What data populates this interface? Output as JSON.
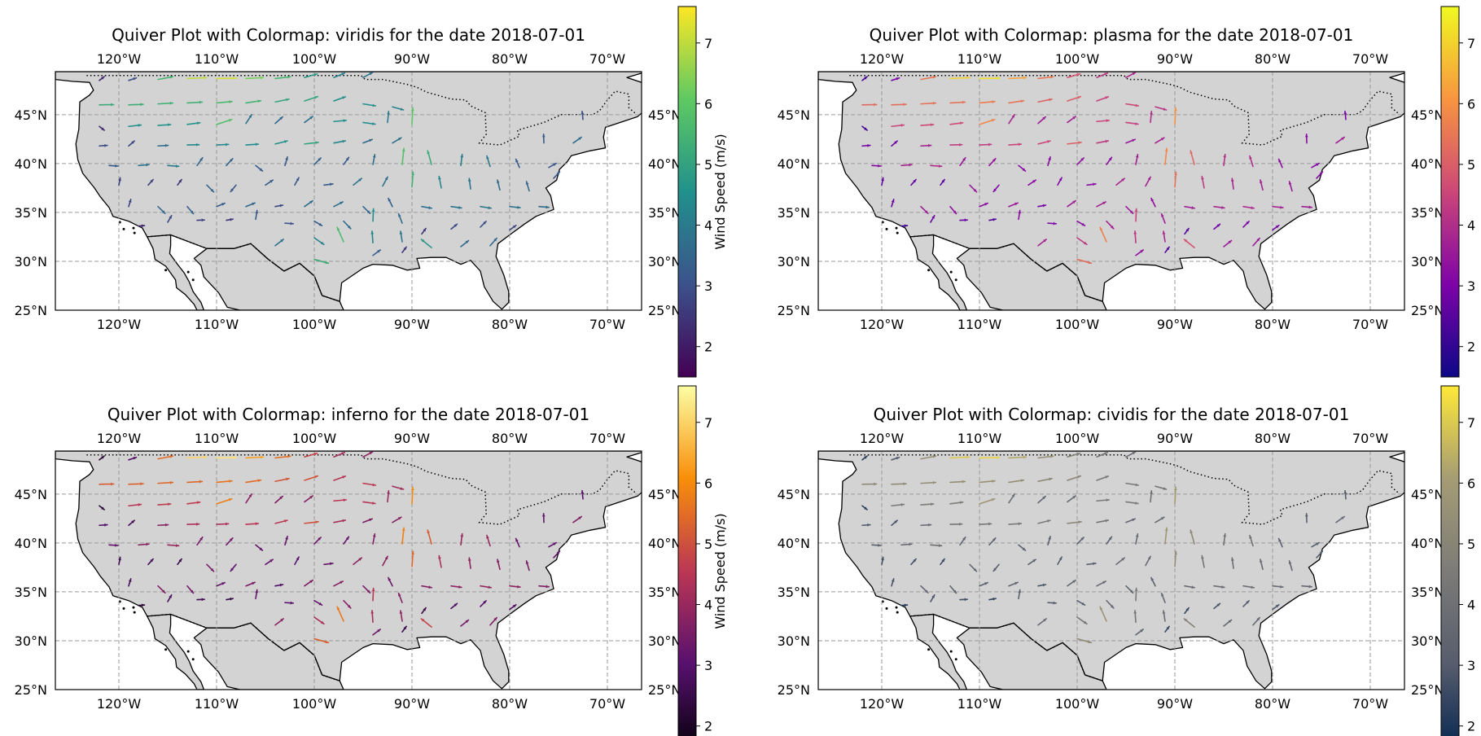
{
  "chart_data": [
    {
      "type": "quiver",
      "title": "Quiver Plot with Colormap: viridis for the date 2018-07-01",
      "colormap": "viridis",
      "colorbar": {
        "label": "Wind Speed (m/s)",
        "range": [
          1.5,
          7.6
        ],
        "ticks": [
          {
            "v": 2,
            "t": "2"
          },
          {
            "v": 3,
            "t": "3"
          },
          {
            "v": 4,
            "t": "4"
          },
          {
            "v": 5,
            "t": "5"
          },
          {
            "v": 6,
            "t": "6"
          },
          {
            "v": 7,
            "t": "7"
          }
        ]
      },
      "xlim": [
        -126.5,
        -66.5
      ],
      "ylim": [
        25,
        49.4
      ],
      "xticks": [
        {
          "v": -120,
          "t": "120°W"
        },
        {
          "v": -110,
          "t": "110°W"
        },
        {
          "v": -100,
          "t": "100°W"
        },
        {
          "v": -90,
          "t": "90°W"
        },
        {
          "v": -80,
          "t": "80°W"
        },
        {
          "v": -70,
          "t": "70°W"
        }
      ],
      "yticks": [
        {
          "v": 25,
          "t": "25°N"
        },
        {
          "v": 30,
          "t": "30°N"
        },
        {
          "v": 35,
          "t": "35°N"
        },
        {
          "v": 40,
          "t": "40°N"
        },
        {
          "v": 45,
          "t": "45°N"
        }
      ],
      "grid": true
    },
    {
      "type": "quiver",
      "title": "Quiver Plot with Colormap: plasma for the date 2018-07-01",
      "colormap": "plasma",
      "colorbar": {
        "label": "",
        "range": [
          1.5,
          7.6
        ],
        "ticks": [
          {
            "v": 2,
            "t": "2"
          },
          {
            "v": 3,
            "t": "3"
          },
          {
            "v": 4,
            "t": "4"
          },
          {
            "v": 5,
            "t": "5"
          },
          {
            "v": 6,
            "t": "6"
          },
          {
            "v": 7,
            "t": "7"
          }
        ]
      },
      "xlim": [
        -126.5,
        -66.5
      ],
      "ylim": [
        25,
        49.4
      ],
      "xticks": [
        {
          "v": -120,
          "t": "120°W"
        },
        {
          "v": -110,
          "t": "110°W"
        },
        {
          "v": -100,
          "t": "100°W"
        },
        {
          "v": -90,
          "t": "90°W"
        },
        {
          "v": -80,
          "t": "80°W"
        },
        {
          "v": -70,
          "t": "70°W"
        }
      ],
      "yticks": [
        {
          "v": 25,
          "t": "25°N"
        },
        {
          "v": 30,
          "t": "30°N"
        },
        {
          "v": 35,
          "t": "35°N"
        },
        {
          "v": 40,
          "t": "40°N"
        },
        {
          "v": 45,
          "t": "45°N"
        }
      ],
      "grid": true
    },
    {
      "type": "quiver",
      "title": "Quiver Plot with Colormap: inferno for the date 2018-07-01",
      "colormap": "inferno",
      "colorbar": {
        "label": "Wind Speed (m/s)",
        "range": [
          1.5,
          7.6
        ],
        "ticks": [
          {
            "v": 2,
            "t": "2"
          },
          {
            "v": 3,
            "t": "3"
          },
          {
            "v": 4,
            "t": "4"
          },
          {
            "v": 5,
            "t": "5"
          },
          {
            "v": 6,
            "t": "6"
          },
          {
            "v": 7,
            "t": "7"
          }
        ]
      },
      "xlim": [
        -126.5,
        -66.5
      ],
      "ylim": [
        25,
        49.4
      ],
      "xticks": [
        {
          "v": -120,
          "t": "120°W"
        },
        {
          "v": -110,
          "t": "110°W"
        },
        {
          "v": -100,
          "t": "100°W"
        },
        {
          "v": -90,
          "t": "90°W"
        },
        {
          "v": -80,
          "t": "80°W"
        },
        {
          "v": -70,
          "t": "70°W"
        }
      ],
      "yticks": [
        {
          "v": 25,
          "t": "25°N"
        },
        {
          "v": 30,
          "t": "30°N"
        },
        {
          "v": 35,
          "t": "35°N"
        },
        {
          "v": 40,
          "t": "40°N"
        },
        {
          "v": 45,
          "t": "45°N"
        }
      ],
      "grid": true
    },
    {
      "type": "quiver",
      "title": "Quiver Plot with Colormap: cividis for the date 2018-07-01",
      "colormap": "cividis",
      "colorbar": {
        "label": "",
        "range": [
          1.5,
          7.6
        ],
        "ticks": [
          {
            "v": 2,
            "t": "2"
          },
          {
            "v": 3,
            "t": "3"
          },
          {
            "v": 4,
            "t": "4"
          },
          {
            "v": 5,
            "t": "5"
          },
          {
            "v": 6,
            "t": "6"
          },
          {
            "v": 7,
            "t": "7"
          }
        ]
      },
      "xlim": [
        -126.5,
        -66.5
      ],
      "ylim": [
        25,
        49.4
      ],
      "xticks": [
        {
          "v": -120,
          "t": "120°W"
        },
        {
          "v": -110,
          "t": "110°W"
        },
        {
          "v": -100,
          "t": "100°W"
        },
        {
          "v": -90,
          "t": "90°W"
        },
        {
          "v": -80,
          "t": "80°W"
        },
        {
          "v": -70,
          "t": "70°W"
        }
      ],
      "yticks": [
        {
          "v": 25,
          "t": "25°N"
        },
        {
          "v": 30,
          "t": "30°N"
        },
        {
          "v": 35,
          "t": "35°N"
        },
        {
          "v": 40,
          "t": "40°N"
        },
        {
          "v": 45,
          "t": "45°N"
        }
      ],
      "grid": true
    }
  ],
  "colormaps": {
    "viridis": [
      "#440154",
      "#3b528b",
      "#21918c",
      "#5ec962",
      "#fde725"
    ],
    "plasma": [
      "#0d0887",
      "#7e03a8",
      "#cc4778",
      "#f89540",
      "#f0f921"
    ],
    "inferno": [
      "#000004",
      "#57106e",
      "#bc3754",
      "#f98e09",
      "#fcffa4"
    ],
    "cividis": [
      "#00224e",
      "#575d6d",
      "#7c7b78",
      "#a59c74",
      "#fee838"
    ]
  },
  "wind_field": [
    {
      "lon": -122,
      "lat": 48.5,
      "u": 1.8,
      "v": 1.4
    },
    {
      "lon": -119,
      "lat": 48.5,
      "u": 2.8,
      "v": 0.9
    },
    {
      "lon": -116,
      "lat": 48.6,
      "u": 5.4,
      "v": 1.0
    },
    {
      "lon": -113,
      "lat": 48.7,
      "u": 7.0,
      "v": 0.3
    },
    {
      "lon": -110,
      "lat": 48.7,
      "u": 7.2,
      "v": 0.1
    },
    {
      "lon": -107,
      "lat": 48.7,
      "u": 6.3,
      "v": 0.3
    },
    {
      "lon": -104,
      "lat": 48.7,
      "u": 5.5,
      "v": 0.6
    },
    {
      "lon": -101,
      "lat": 48.8,
      "u": 4.6,
      "v": 1.3
    },
    {
      "lon": -98,
      "lat": 48.8,
      "u": 3.9,
      "v": 1.6
    },
    {
      "lon": -95,
      "lat": 48.8,
      "u": 3.4,
      "v": 1.8
    },
    {
      "lon": -122,
      "lat": 46.0,
      "u": 5.2,
      "v": 0.1
    },
    {
      "lon": -119,
      "lat": 46.0,
      "u": 5.3,
      "v": 0.2
    },
    {
      "lon": -116,
      "lat": 46.1,
      "u": 5.4,
      "v": 0.3
    },
    {
      "lon": -113,
      "lat": 46.2,
      "u": 5.4,
      "v": 0.3
    },
    {
      "lon": -110,
      "lat": 46.2,
      "u": 5.6,
      "v": 0.5
    },
    {
      "lon": -107,
      "lat": 46.2,
      "u": 5.4,
      "v": 0.8
    },
    {
      "lon": -104,
      "lat": 46.3,
      "u": 5.0,
      "v": 1.0
    },
    {
      "lon": -101,
      "lat": 46.4,
      "u": 4.8,
      "v": 1.6
    },
    {
      "lon": -98,
      "lat": 46.4,
      "u": 4.2,
      "v": 1.5
    },
    {
      "lon": -95,
      "lat": 46.1,
      "u": 4.5,
      "v": -0.7
    },
    {
      "lon": -92,
      "lat": 45.8,
      "u": 4.0,
      "v": -1.1
    },
    {
      "lon": -122,
      "lat": 43.8,
      "u": 1.8,
      "v": -1.4
    },
    {
      "lon": -119,
      "lat": 43.8,
      "u": 4.5,
      "v": 0.5
    },
    {
      "lon": -116,
      "lat": 43.9,
      "u": 4.6,
      "v": 0.3
    },
    {
      "lon": -113,
      "lat": 44.0,
      "u": 4.6,
      "v": 0.6
    },
    {
      "lon": -110,
      "lat": 44.0,
      "u": 5.5,
      "v": 1.8
    },
    {
      "lon": -107,
      "lat": 44.1,
      "u": 2.1,
      "v": 3.2
    },
    {
      "lon": -104,
      "lat": 44.1,
      "u": 2.7,
      "v": 2.4
    },
    {
      "lon": -101,
      "lat": 44.2,
      "u": 3.0,
      "v": 2.2
    },
    {
      "lon": -98,
      "lat": 44.3,
      "u": 4.5,
      "v": 0.4
    },
    {
      "lon": -95,
      "lat": 44.2,
      "u": 4.4,
      "v": -0.6
    },
    {
      "lon": -92.5,
      "lat": 44.2,
      "u": 0.4,
      "v": 4.0
    },
    {
      "lon": -90,
      "lat": 44.0,
      "u": 0.3,
      "v": 6.0
    },
    {
      "lon": -72.5,
      "lat": 44.5,
      "u": -0.3,
      "v": 3.0
    },
    {
      "lon": -122,
      "lat": 41.8,
      "u": 2.9,
      "v": 0.2
    },
    {
      "lon": -119,
      "lat": 41.8,
      "u": 2.1,
      "v": 1.8
    },
    {
      "lon": -116,
      "lat": 41.8,
      "u": 3.7,
      "v": 0.2
    },
    {
      "lon": -113,
      "lat": 41.9,
      "u": 4.3,
      "v": 0.1
    },
    {
      "lon": -110,
      "lat": 41.9,
      "u": 4.3,
      "v": 0.2
    },
    {
      "lon": -107,
      "lat": 41.9,
      "u": 4.5,
      "v": 0.3
    },
    {
      "lon": -104,
      "lat": 42.0,
      "u": 4.4,
      "v": 1.1
    },
    {
      "lon": -101,
      "lat": 42.0,
      "u": 5.0,
      "v": 0.6
    },
    {
      "lon": -98,
      "lat": 42.1,
      "u": 4.2,
      "v": 0.8
    },
    {
      "lon": -95,
      "lat": 42.1,
      "u": 3.3,
      "v": 1.3
    },
    {
      "lon": -92,
      "lat": 42.1,
      "u": 3.2,
      "v": 1.9
    },
    {
      "lon": -76.5,
      "lat": 42.1,
      "u": -0.1,
      "v": 3.2
    },
    {
      "lon": -73.5,
      "lat": 42.1,
      "u": 3.0,
      "v": 2.1
    },
    {
      "lon": -121,
      "lat": 39.8,
      "u": 3.2,
      "v": -0.2
    },
    {
      "lon": -118,
      "lat": 39.8,
      "u": 3.8,
      "v": 0.3
    },
    {
      "lon": -115,
      "lat": 39.8,
      "u": 4.0,
      "v": -0.3
    },
    {
      "lon": -112,
      "lat": 39.8,
      "u": 2.0,
      "v": 2.8
    },
    {
      "lon": -109,
      "lat": 39.8,
      "u": 2.3,
      "v": 2.5
    },
    {
      "lon": -106,
      "lat": 39.8,
      "u": 2.5,
      "v": -2.0
    },
    {
      "lon": -103,
      "lat": 39.8,
      "u": 0.9,
      "v": 3.1
    },
    {
      "lon": -100,
      "lat": 39.9,
      "u": 2.4,
      "v": 2.4
    },
    {
      "lon": -97,
      "lat": 39.9,
      "u": 1.9,
      "v": 2.6
    },
    {
      "lon": -94,
      "lat": 39.9,
      "u": 0.7,
      "v": 3.6
    },
    {
      "lon": -91,
      "lat": 39.9,
      "u": 0.6,
      "v": 5.8
    },
    {
      "lon": -88,
      "lat": 39.9,
      "u": -1.4,
      "v": 5.0
    },
    {
      "lon": -85,
      "lat": 39.8,
      "u": 0.5,
      "v": 4.0
    },
    {
      "lon": -82,
      "lat": 39.7,
      "u": -1.2,
      "v": 3.8
    },
    {
      "lon": -79,
      "lat": 39.6,
      "u": -1.3,
      "v": 3.0
    },
    {
      "lon": -76,
      "lat": 39.6,
      "u": 2.7,
      "v": 1.5
    },
    {
      "lon": -120,
      "lat": 37.8,
      "u": 0.5,
      "v": 2.6
    },
    {
      "lon": -117,
      "lat": 37.8,
      "u": 1.8,
      "v": 2.0
    },
    {
      "lon": -114,
      "lat": 37.8,
      "u": 1.5,
      "v": 2.0
    },
    {
      "lon": -111,
      "lat": 37.8,
      "u": 2.5,
      "v": -2.5
    },
    {
      "lon": -108,
      "lat": 37.8,
      "u": -2.0,
      "v": -2.4
    },
    {
      "lon": -105,
      "lat": 37.8,
      "u": 2.7,
      "v": 1.8
    },
    {
      "lon": -102,
      "lat": 37.8,
      "u": 1.5,
      "v": 2.7
    },
    {
      "lon": -99,
      "lat": 37.8,
      "u": 3.2,
      "v": 0.4
    },
    {
      "lon": -96,
      "lat": 37.8,
      "u": 3.0,
      "v": 2.4
    },
    {
      "lon": -93,
      "lat": 37.7,
      "u": 1.8,
      "v": 3.3
    },
    {
      "lon": -90,
      "lat": 37.6,
      "u": 0.4,
      "v": 5.4
    },
    {
      "lon": -87,
      "lat": 37.5,
      "u": -0.8,
      "v": 4.2
    },
    {
      "lon": -84,
      "lat": 37.4,
      "u": -0.5,
      "v": 3.8
    },
    {
      "lon": -81,
      "lat": 37.3,
      "u": -0.9,
      "v": 3.6
    },
    {
      "lon": -78,
      "lat": 37.2,
      "u": -1.0,
      "v": 3.4
    },
    {
      "lon": -75.5,
      "lat": 38.5,
      "u": 2.2,
      "v": 2.3
    },
    {
      "lon": -119,
      "lat": 35.6,
      "u": 0.8,
      "v": 2.6
    },
    {
      "lon": -116,
      "lat": 35.6,
      "u": 2.6,
      "v": -2.5
    },
    {
      "lon": -113,
      "lat": 35.6,
      "u": 2.2,
      "v": -2.6
    },
    {
      "lon": -110,
      "lat": 35.6,
      "u": 3.0,
      "v": 1.2
    },
    {
      "lon": -107,
      "lat": 35.6,
      "u": 3.3,
      "v": 1.3
    },
    {
      "lon": -104,
      "lat": 35.6,
      "u": 2.8,
      "v": 0.5
    },
    {
      "lon": -101,
      "lat": 35.6,
      "u": 3.0,
      "v": 2.1
    },
    {
      "lon": -98,
      "lat": 35.6,
      "u": 3.3,
      "v": 1.7
    },
    {
      "lon": -95,
      "lat": 35.6,
      "u": 2.5,
      "v": -2.5
    },
    {
      "lon": -92,
      "lat": 35.6,
      "u": -1.5,
      "v": 3.0
    },
    {
      "lon": -89,
      "lat": 35.6,
      "u": 3.6,
      "v": -0.6
    },
    {
      "lon": -86,
      "lat": 35.6,
      "u": 3.8,
      "v": -0.5
    },
    {
      "lon": -83,
      "lat": 35.6,
      "u": 3.9,
      "v": -0.6
    },
    {
      "lon": -80,
      "lat": 35.6,
      "u": 3.8,
      "v": -0.4
    },
    {
      "lon": -77,
      "lat": 35.6,
      "u": 3.6,
      "v": -0.3
    },
    {
      "lon": -118,
      "lat": 33.6,
      "u": 2.2,
      "v": 0.2
    },
    {
      "lon": -115,
      "lat": 34.0,
      "u": 1.4,
      "v": 2.4
    },
    {
      "lon": -112,
      "lat": 34.2,
      "u": 2.7,
      "v": 0.1
    },
    {
      "lon": -109,
      "lat": 34.2,
      "u": 2.4,
      "v": 0.4
    },
    {
      "lon": -106,
      "lat": 34.3,
      "u": 0.5,
      "v": 3.2
    },
    {
      "lon": -103,
      "lat": 33.9,
      "u": 3.0,
      "v": -0.2
    },
    {
      "lon": -100,
      "lat": 34.1,
      "u": 2.8,
      "v": -1.6
    },
    {
      "lon": -97,
      "lat": 34.1,
      "u": 2.6,
      "v": -2.7
    },
    {
      "lon": -94,
      "lat": 34.1,
      "u": 0.2,
      "v": 4.5
    },
    {
      "lon": -91,
      "lat": 33.9,
      "u": -1.3,
      "v": 3.4
    },
    {
      "lon": -89,
      "lat": 32.8,
      "u": 1.5,
      "v": 2.0
    },
    {
      "lon": -86,
      "lat": 33.3,
      "u": 2.2,
      "v": 1.8
    },
    {
      "lon": -83,
      "lat": 33.5,
      "u": 2.1,
      "v": 2.1
    },
    {
      "lon": -80,
      "lat": 33.2,
      "u": 2.3,
      "v": 1.7
    },
    {
      "lon": -104,
      "lat": 31.6,
      "u": 3.0,
      "v": 2.3
    },
    {
      "lon": -100,
      "lat": 32.4,
      "u": 3.5,
      "v": -2.4
    },
    {
      "lon": -97,
      "lat": 32.0,
      "u": -2.3,
      "v": 5.2
    },
    {
      "lon": -94,
      "lat": 31.9,
      "u": -0.3,
      "v": 4.2
    },
    {
      "lon": -91,
      "lat": 32.0,
      "u": -0.6,
      "v": 3.8
    },
    {
      "lon": -88,
      "lat": 31.4,
      "u": -3.7,
      "v": 3.0
    },
    {
      "lon": -85,
      "lat": 31.5,
      "u": 2.8,
      "v": 2.2
    },
    {
      "lon": -82,
      "lat": 31.6,
      "u": 2.4,
      "v": 2.7
    },
    {
      "lon": -100,
      "lat": 30.2,
      "u": 5.1,
      "v": -1.4
    },
    {
      "lon": -94,
      "lat": 30.6,
      "u": 2.7,
      "v": 2.0
    },
    {
      "lon": -91,
      "lat": 30.9,
      "u": 1.5,
      "v": 2.0
    }
  ]
}
